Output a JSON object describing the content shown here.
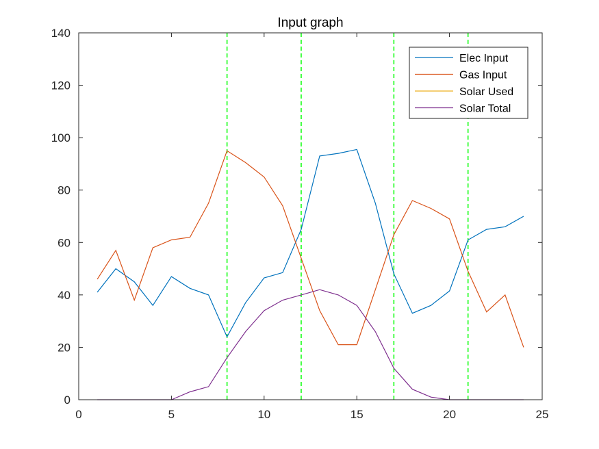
{
  "chart_data": {
    "type": "line",
    "title": "Input graph",
    "xlabel": "",
    "ylabel": "",
    "xlim": [
      0,
      25
    ],
    "ylim": [
      0,
      140
    ],
    "xticks": [
      0,
      5,
      10,
      15,
      20,
      25
    ],
    "yticks": [
      0,
      20,
      40,
      60,
      80,
      100,
      120,
      140
    ],
    "grid": false,
    "legend_position": "top-right",
    "x": [
      1,
      2,
      3,
      4,
      5,
      6,
      7,
      8,
      9,
      10,
      11,
      12,
      13,
      14,
      15,
      16,
      17,
      18,
      19,
      20,
      21,
      22,
      23,
      24
    ],
    "series": [
      {
        "name": "Elec Input",
        "color": "#0072BD",
        "values": [
          41,
          50,
          45,
          36,
          47,
          42.5,
          40,
          24,
          37,
          46.5,
          48.5,
          65,
          93,
          94,
          95.5,
          75,
          48,
          33,
          36,
          41.5,
          61,
          65,
          66,
          70
        ]
      },
      {
        "name": "Gas Input",
        "color": "#D95319",
        "values": [
          46,
          57,
          38,
          58,
          61,
          62,
          75,
          95,
          90.5,
          85,
          74,
          54,
          34,
          21,
          21,
          42,
          63,
          76,
          73,
          69,
          49,
          33.5,
          40,
          20
        ]
      },
      {
        "name": "Solar Used",
        "color": "#EDB120",
        "values": [
          null,
          null,
          null,
          null,
          null,
          null,
          null,
          null,
          null,
          null,
          null,
          null,
          null,
          null,
          null,
          null,
          null,
          null,
          null,
          null,
          null,
          null,
          null,
          null
        ]
      },
      {
        "name": "Solar Total",
        "color": "#7E2F8E",
        "values": [
          0,
          0,
          0,
          0,
          0,
          3,
          5,
          16,
          26,
          34,
          38,
          40,
          42,
          40,
          36,
          26,
          12,
          4,
          1,
          0,
          0,
          0,
          0,
          0
        ]
      }
    ],
    "vlines": {
      "color": "#00FF00",
      "style": "dashed",
      "x": [
        8,
        12,
        17,
        21
      ]
    }
  }
}
